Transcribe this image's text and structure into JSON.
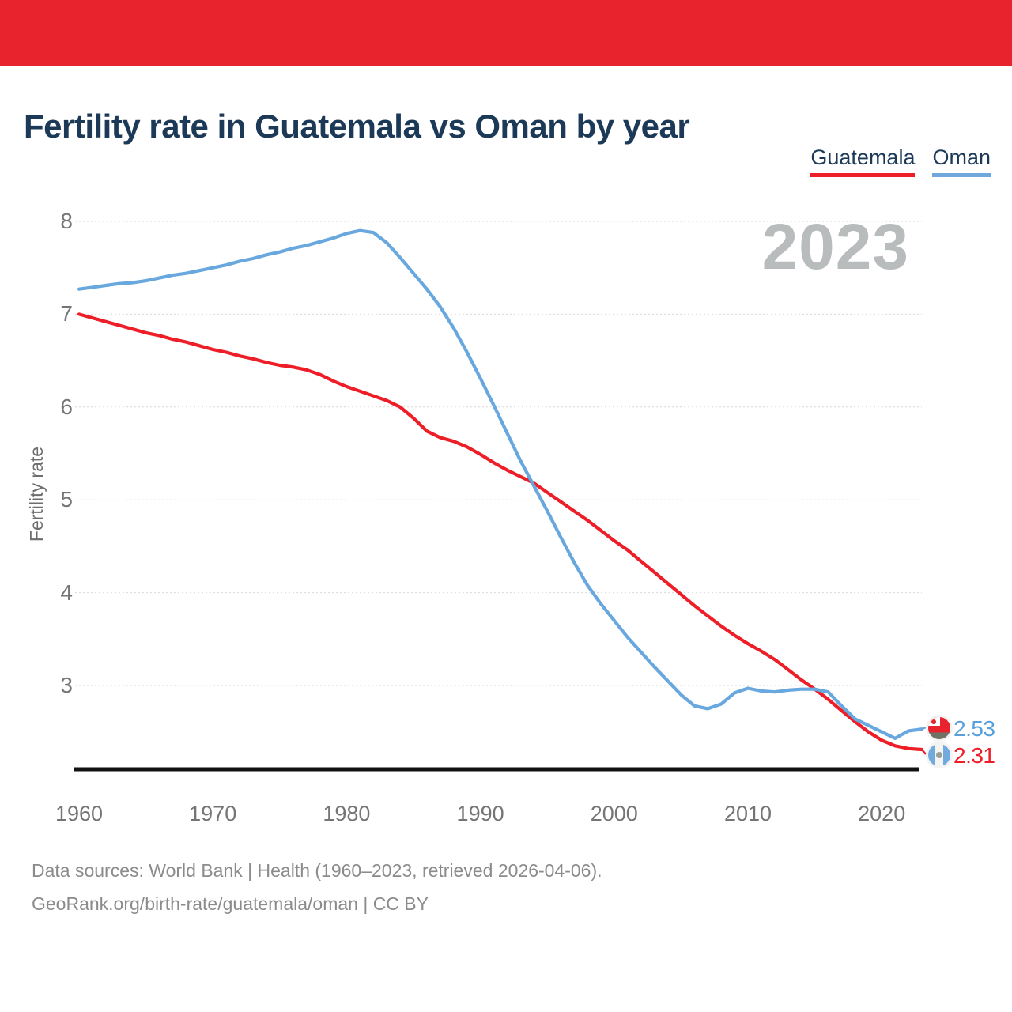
{
  "banner": {
    "color": "#e8232e"
  },
  "header": {
    "title": "Fertility rate in Guatemala vs Oman by year"
  },
  "legend": [
    {
      "label": "Guatemala",
      "color": "#ed1e27"
    },
    {
      "label": "Oman",
      "color": "#6fa8dc"
    }
  ],
  "chart_data": {
    "type": "line",
    "title": "Fertility rate in Guatemala vs Oman by year",
    "ylabel": "Fertility rate",
    "watermark": "2023",
    "x_start": 1960,
    "x_end": 2023,
    "x_ticks": [
      1960,
      1970,
      1980,
      1990,
      2000,
      2010,
      2020
    ],
    "y_ticks": [
      8,
      7,
      6,
      5,
      4,
      3
    ],
    "grid": true,
    "legend_position": "top-right",
    "series": [
      {
        "name": "Guatemala",
        "color": "#ed1e27",
        "end_label": "2.31",
        "flag": "guatemala",
        "values": [
          7.0,
          6.96,
          6.92,
          6.88,
          6.84,
          6.8,
          6.77,
          6.73,
          6.7,
          6.66,
          6.62,
          6.59,
          6.55,
          6.52,
          6.48,
          6.45,
          6.43,
          6.4,
          6.35,
          6.28,
          6.22,
          6.17,
          6.12,
          6.07,
          6.0,
          5.88,
          5.74,
          5.67,
          5.63,
          5.57,
          5.49,
          5.4,
          5.32,
          5.25,
          5.18,
          5.08,
          4.98,
          4.88,
          4.78,
          4.67,
          4.56,
          4.46,
          4.34,
          4.22,
          4.1,
          3.98,
          3.86,
          3.75,
          3.64,
          3.54,
          3.45,
          3.37,
          3.28,
          3.17,
          3.06,
          2.96,
          2.85,
          2.73,
          2.61,
          2.5,
          2.41,
          2.35,
          2.32,
          2.31
        ]
      },
      {
        "name": "Oman",
        "color": "#68a8de",
        "end_label": "2.53",
        "flag": "oman",
        "values": [
          7.27,
          7.29,
          7.31,
          7.33,
          7.34,
          7.36,
          7.39,
          7.42,
          7.44,
          7.47,
          7.5,
          7.53,
          7.57,
          7.6,
          7.64,
          7.67,
          7.71,
          7.74,
          7.78,
          7.82,
          7.87,
          7.9,
          7.88,
          7.77,
          7.61,
          7.44,
          7.27,
          7.08,
          6.85,
          6.59,
          6.31,
          6.02,
          5.72,
          5.42,
          5.15,
          4.88,
          4.6,
          4.33,
          4.08,
          3.88,
          3.7,
          3.52,
          3.36,
          3.2,
          3.05,
          2.9,
          2.78,
          2.75,
          2.8,
          2.92,
          2.97,
          2.94,
          2.93,
          2.95,
          2.96,
          2.96,
          2.93,
          2.78,
          2.64,
          2.57,
          2.5,
          2.43,
          2.51,
          2.53
        ]
      }
    ]
  },
  "end_labels": [
    {
      "value": "2.53",
      "color": "#58a0dc"
    },
    {
      "value": "2.31",
      "color": "#ed1e27"
    }
  ],
  "footer": {
    "line1": "Data sources: World Bank | Health (1960–2023, retrieved 2026-04-06).",
    "line2": "GeoRank.org/birth-rate/guatemala/oman | CC BY"
  }
}
